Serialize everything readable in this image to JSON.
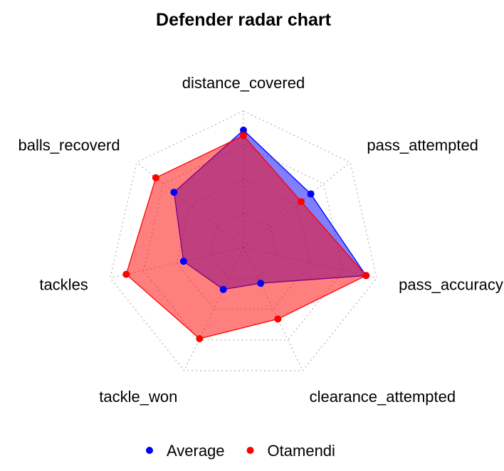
{
  "chart_data": {
    "type": "radar",
    "title": "Defender radar chart",
    "axes": [
      "distance_covered",
      "pass_attempted",
      "pass_accuracy",
      "clearance_attempted",
      "tackle_won",
      "tackles",
      "balls_recoverd"
    ],
    "range": [
      0,
      1
    ],
    "grid_levels": 4,
    "grid": true,
    "legend_position": "bottom",
    "series": [
      {
        "name": "Average",
        "color": "#0000ff",
        "values": [
          0.86,
          0.63,
          0.92,
          0.29,
          0.34,
          0.45,
          0.65
        ]
      },
      {
        "name": "Otamendi",
        "color": "#ff0000",
        "values": [
          0.82,
          0.54,
          0.92,
          0.58,
          0.74,
          0.88,
          0.82
        ]
      }
    ]
  }
}
